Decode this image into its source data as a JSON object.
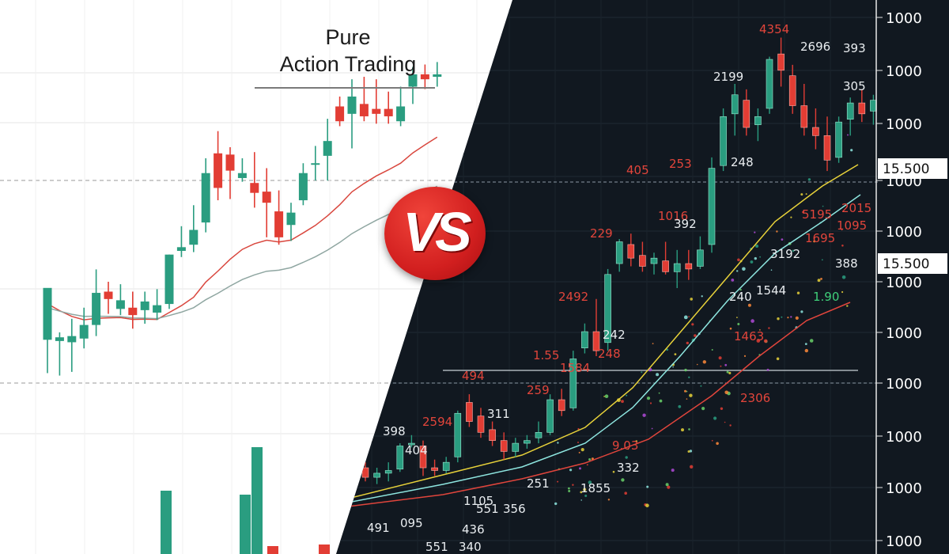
{
  "title": {
    "line1": "Pure",
    "line2": "Action Trading"
  },
  "badge": {
    "text": "VS"
  },
  "colors": {
    "light_bg": "#ffffff",
    "dark_bg": "#111820",
    "bull": "#2a9d80",
    "bear": "#e23d34",
    "ma_red": "#d9473e",
    "ma_grey": "#8fa6a1",
    "ma_yellow": "#e8d23a",
    "ma_cyan": "#8ee6e0",
    "ma_red_dark": "#e0453c"
  },
  "chart_data": [
    {
      "type": "candlestick",
      "panel": "left",
      "title": "Pure Action Trading",
      "candles": [
        {
          "o": 51.5,
          "h": 72,
          "l": 38,
          "c": 72.5
        },
        {
          "o": 51,
          "h": 54.5,
          "l": 37,
          "c": 52.5
        },
        {
          "o": 50.5,
          "h": 60,
          "l": 38.5,
          "c": 53
        },
        {
          "o": 52,
          "h": 64.5,
          "l": 48,
          "c": 57.5
        },
        {
          "o": 57.5,
          "h": 80,
          "l": 53,
          "c": 70.5
        },
        {
          "o": 71,
          "h": 75,
          "l": 62,
          "c": 68
        },
        {
          "o": 64,
          "h": 74,
          "l": 61.5,
          "c": 67.5
        },
        {
          "o": 64.5,
          "h": 71,
          "l": 56,
          "c": 61.5
        },
        {
          "o": 63.5,
          "h": 71,
          "l": 58,
          "c": 67
        },
        {
          "o": 62.5,
          "h": 72,
          "l": 59.5,
          "c": 65.5
        },
        {
          "o": 66,
          "h": 86,
          "l": 64,
          "c": 86
        },
        {
          "o": 87.5,
          "h": 97.5,
          "l": 85,
          "c": 89
        },
        {
          "o": 90,
          "h": 106,
          "l": 87,
          "c": 96
        },
        {
          "o": 99,
          "h": 125,
          "l": 95,
          "c": 119
        },
        {
          "o": 127,
          "h": 136,
          "l": 108,
          "c": 113
        },
        {
          "o": 126.5,
          "h": 129.5,
          "l": 108.5,
          "c": 120
        },
        {
          "o": 117,
          "h": 125,
          "l": 115.5,
          "c": 119
        },
        {
          "o": 115,
          "h": 127.5,
          "l": 105,
          "c": 111
        },
        {
          "o": 111.5,
          "h": 121,
          "l": 93,
          "c": 107
        },
        {
          "o": 103.5,
          "h": 112,
          "l": 90,
          "c": 93
        },
        {
          "o": 98,
          "h": 107,
          "l": 91.5,
          "c": 103
        },
        {
          "o": 108,
          "h": 123,
          "l": 106,
          "c": 119
        },
        {
          "o": 122.5,
          "h": 130,
          "l": 116,
          "c": 123
        },
        {
          "o": 126,
          "h": 141,
          "l": 116,
          "c": 132
        },
        {
          "o": 146,
          "h": 150,
          "l": 138,
          "c": 140
        },
        {
          "o": 143,
          "h": 157,
          "l": 129,
          "c": 150
        },
        {
          "o": 147,
          "h": 158,
          "l": 140,
          "c": 142
        },
        {
          "o": 145,
          "h": 157,
          "l": 139,
          "c": 143
        },
        {
          "o": 145,
          "h": 152,
          "l": 139,
          "c": 142
        },
        {
          "o": 140,
          "h": 154,
          "l": 138,
          "c": 146
        },
        {
          "o": 154,
          "h": 162,
          "l": 147,
          "c": 159
        },
        {
          "o": 159,
          "h": 163,
          "l": 153,
          "c": 157
        },
        {
          "o": 158,
          "h": 164,
          "l": 154,
          "c": 159
        }
      ],
      "volume": [
        0,
        0,
        0,
        0,
        0,
        0,
        0,
        0,
        0,
        0,
        0,
        0,
        0,
        0,
        0,
        0,
        0,
        0,
        0,
        0,
        0,
        0,
        0,
        0,
        0,
        0,
        0,
        0,
        0,
        0,
        0,
        0,
        0
      ]
    },
    {
      "type": "candlestick",
      "panel": "right",
      "axis_labels": [
        "1000",
        "1000",
        "1000",
        "1000",
        "1000",
        "15.500",
        "1000",
        "15.500",
        "1000",
        "1000",
        "1000",
        "1000",
        "1000",
        "1000",
        "1000"
      ],
      "annotations": [
        {
          "text": "4354",
          "color": "red"
        },
        {
          "text": "2696",
          "color": "white"
        },
        {
          "text": "393",
          "color": "white"
        },
        {
          "text": "2199",
          "color": "white"
        },
        {
          "text": "305",
          "color": "white"
        },
        {
          "text": "405",
          "color": "red"
        },
        {
          "text": "253",
          "color": "red"
        },
        {
          "text": "248",
          "color": "white"
        },
        {
          "text": "229",
          "color": "red"
        },
        {
          "text": "1016",
          "color": "red"
        },
        {
          "text": "392",
          "color": "white"
        },
        {
          "text": "3192",
          "color": "white"
        },
        {
          "text": "388",
          "color": "white"
        },
        {
          "text": "2492",
          "color": "red"
        },
        {
          "text": "240",
          "color": "white"
        },
        {
          "text": "1544",
          "color": "white"
        },
        {
          "text": "1.90",
          "color": "green"
        },
        {
          "text": "242",
          "color": "white"
        },
        {
          "text": "248",
          "color": "red"
        },
        {
          "text": "1463",
          "color": "red"
        },
        {
          "text": "1.55",
          "color": "red"
        },
        {
          "text": "1584",
          "color": "red"
        },
        {
          "text": "494",
          "color": "red"
        },
        {
          "text": "259",
          "color": "red"
        },
        {
          "text": "2306",
          "color": "red"
        },
        {
          "text": "398",
          "color": "white"
        },
        {
          "text": "2594",
          "color": "red"
        },
        {
          "text": "311",
          "color": "white"
        },
        {
          "text": "404",
          "color": "white"
        },
        {
          "text": "9.03",
          "color": "red"
        },
        {
          "text": "332",
          "color": "white"
        },
        {
          "text": "1105",
          "color": "white"
        },
        {
          "text": "551",
          "color": "white"
        },
        {
          "text": "356",
          "color": "white"
        },
        {
          "text": "251",
          "color": "white"
        },
        {
          "text": "1855",
          "color": "white"
        },
        {
          "text": "491",
          "color": "white"
        },
        {
          "text": "095",
          "color": "white"
        },
        {
          "text": "436",
          "color": "white"
        },
        {
          "text": "551",
          "color": "white"
        },
        {
          "text": "340",
          "color": "white"
        },
        {
          "text": "5195",
          "color": "red"
        },
        {
          "text": "2015",
          "color": "red"
        },
        {
          "text": "1695",
          "color": "red"
        },
        {
          "text": "1095",
          "color": "red"
        }
      ],
      "candles": [
        {
          "o": 18,
          "h": 22,
          "l": 8,
          "c": 11
        },
        {
          "o": 11,
          "h": 18,
          "l": 6,
          "c": 14
        },
        {
          "o": 14,
          "h": 22,
          "l": 8,
          "c": 16
        },
        {
          "o": 17,
          "h": 36,
          "l": 15,
          "c": 34
        },
        {
          "o": 36,
          "h": 42,
          "l": 33,
          "c": 36
        },
        {
          "o": 34,
          "h": 38,
          "l": 12,
          "c": 18
        },
        {
          "o": 18,
          "h": 24,
          "l": 12,
          "c": 16
        },
        {
          "o": 16,
          "h": 26,
          "l": 14,
          "c": 22
        },
        {
          "o": 26,
          "h": 60,
          "l": 22,
          "c": 58
        },
        {
          "o": 66,
          "h": 72,
          "l": 48,
          "c": 52
        },
        {
          "o": 56,
          "h": 62,
          "l": 40,
          "c": 44
        },
        {
          "o": 46,
          "h": 52,
          "l": 34,
          "c": 38
        },
        {
          "o": 38,
          "h": 44,
          "l": 24,
          "c": 30
        },
        {
          "o": 30,
          "h": 40,
          "l": 26,
          "c": 36
        },
        {
          "o": 36,
          "h": 42,
          "l": 32,
          "c": 38
        },
        {
          "o": 40,
          "h": 52,
          "l": 36,
          "c": 44
        },
        {
          "o": 44,
          "h": 72,
          "l": 42,
          "c": 68
        },
        {
          "o": 68,
          "h": 76,
          "l": 56,
          "c": 60
        },
        {
          "o": 62,
          "h": 104,
          "l": 60,
          "c": 98
        },
        {
          "o": 106,
          "h": 124,
          "l": 102,
          "c": 118
        },
        {
          "o": 118,
          "h": 142,
          "l": 100,
          "c": 104
        },
        {
          "o": 110,
          "h": 164,
          "l": 104,
          "c": 160
        },
        {
          "o": 168,
          "h": 186,
          "l": 162,
          "c": 184
        },
        {
          "o": 182,
          "h": 190,
          "l": 166,
          "c": 172
        },
        {
          "o": 174,
          "h": 184,
          "l": 162,
          "c": 166
        },
        {
          "o": 168,
          "h": 176,
          "l": 160,
          "c": 172
        },
        {
          "o": 170,
          "h": 184,
          "l": 160,
          "c": 162
        },
        {
          "o": 162,
          "h": 178,
          "l": 150,
          "c": 168
        },
        {
          "o": 168,
          "h": 178,
          "l": 156,
          "c": 164
        },
        {
          "o": 166,
          "h": 188,
          "l": 164,
          "c": 178
        },
        {
          "o": 182,
          "h": 246,
          "l": 176,
          "c": 238
        },
        {
          "o": 240,
          "h": 282,
          "l": 236,
          "c": 276
        },
        {
          "o": 278,
          "h": 300,
          "l": 262,
          "c": 292
        },
        {
          "o": 288,
          "h": 296,
          "l": 262,
          "c": 268
        },
        {
          "o": 270,
          "h": 282,
          "l": 258,
          "c": 276
        },
        {
          "o": 282,
          "h": 320,
          "l": 278,
          "c": 318
        },
        {
          "o": 322,
          "h": 334,
          "l": 298,
          "c": 310
        },
        {
          "o": 306,
          "h": 314,
          "l": 278,
          "c": 284
        },
        {
          "o": 284,
          "h": 300,
          "l": 262,
          "c": 268
        },
        {
          "o": 268,
          "h": 282,
          "l": 252,
          "c": 262
        },
        {
          "o": 262,
          "h": 276,
          "l": 236,
          "c": 244
        },
        {
          "o": 246,
          "h": 276,
          "l": 242,
          "c": 272
        },
        {
          "o": 274,
          "h": 290,
          "l": 262,
          "c": 286
        },
        {
          "o": 286,
          "h": 296,
          "l": 272,
          "c": 278
        },
        {
          "o": 280,
          "h": 292,
          "l": 270,
          "c": 288
        }
      ]
    }
  ]
}
